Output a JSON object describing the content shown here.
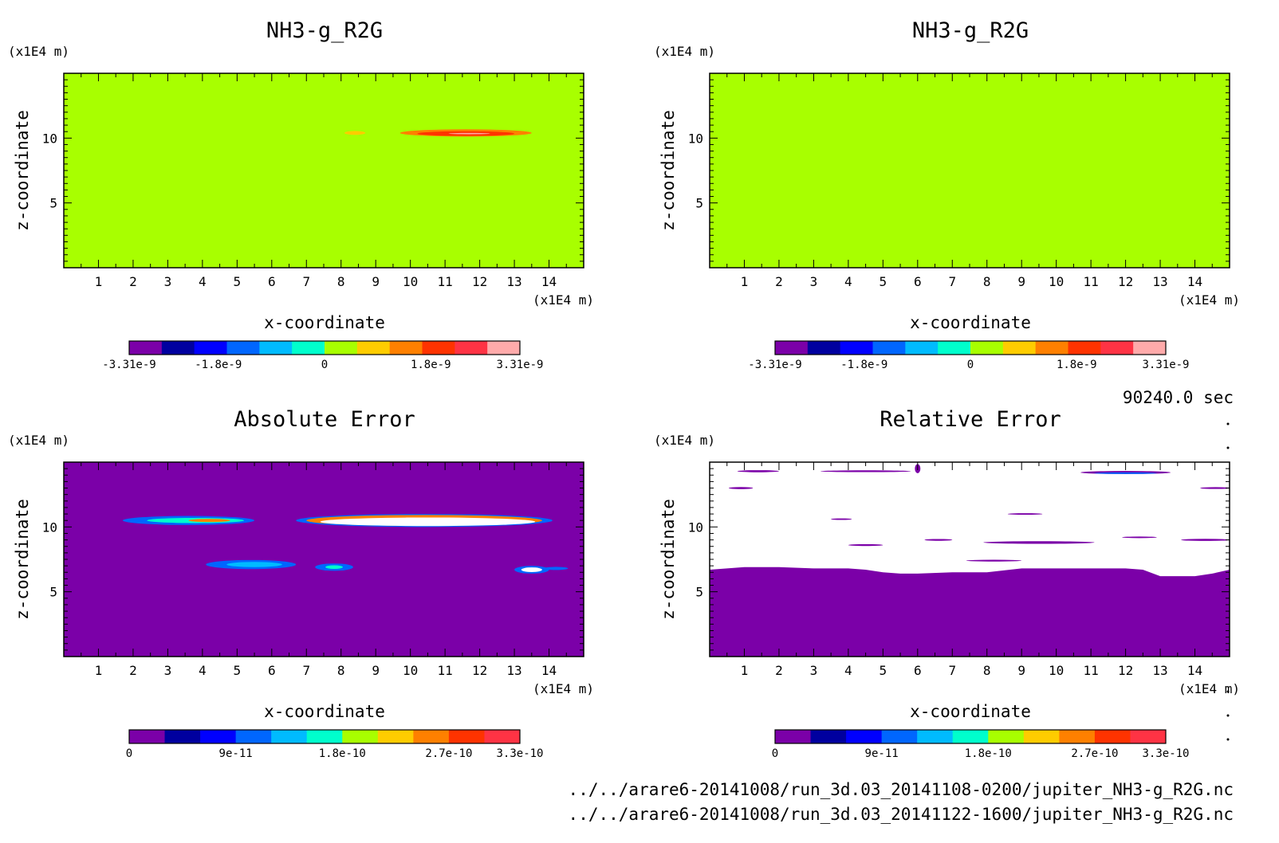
{
  "page": {
    "time_label": "90240.0 sec",
    "file_lines": [
      "../../arare6-20141008/run_3d.03_20141108-0200/jupiter_NH3-g_R2G.nc",
      "../../arare6-20141008/run_3d.03_20141122-1600/jupiter_NH3-g_R2G.nc"
    ]
  },
  "chart_data": [
    {
      "type": "heatmap",
      "title": "NH3-g_R2G",
      "xlabel": "x-coordinate",
      "ylabel": "z-coordinate",
      "x_unit": "(x1E4 m)",
      "y_unit": "(x1E4 m)",
      "xlim": [
        0,
        15
      ],
      "ylim": [
        0,
        15
      ],
      "x_ticks": [
        "1",
        "2",
        "3",
        "4",
        "5",
        "6",
        "7",
        "8",
        "9",
        "10",
        "11",
        "12",
        "13",
        "14"
      ],
      "y_ticks": [
        "5",
        "10"
      ],
      "background_color": "#a8ff00",
      "colorbar": {
        "colors": [
          "#7b00a8",
          "#00009f",
          "#0000ff",
          "#0066ff",
          "#00bbff",
          "#00ffcc",
          "#a8ff00",
          "#ffcc00",
          "#ff8000",
          "#ff3300",
          "#ff3344",
          "#ffaaaa"
        ],
        "labels": [
          "-3.31e-9",
          "-1.8e-9",
          "0",
          "1.8e-9",
          "3.31e-9"
        ],
        "min": -3.31e-09,
        "max": 3.31e-09
      },
      "features": [
        {
          "cx": 8.4,
          "cz": 10.4,
          "rx": 0.3,
          "rz": 0.15,
          "color": "#ffcc00"
        },
        {
          "cx": 11.6,
          "cz": 10.4,
          "rx": 1.9,
          "rz": 0.28,
          "color": "#ff8000"
        },
        {
          "cx": 11.6,
          "cz": 10.35,
          "rx": 1.4,
          "rz": 0.18,
          "color": "#ff3300"
        },
        {
          "cx": 11.7,
          "cz": 10.35,
          "rx": 0.6,
          "rz": 0.05,
          "color": "#ffaaaa"
        }
      ]
    },
    {
      "type": "heatmap",
      "title": "NH3-g_R2G",
      "xlabel": "x-coordinate",
      "ylabel": "z-coordinate",
      "x_unit": "(x1E4 m)",
      "y_unit": "(x1E4 m)",
      "xlim": [
        0,
        15
      ],
      "ylim": [
        0,
        15
      ],
      "x_ticks": [
        "1",
        "2",
        "3",
        "4",
        "5",
        "6",
        "7",
        "8",
        "9",
        "10",
        "11",
        "12",
        "13",
        "14"
      ],
      "y_ticks": [
        "5",
        "10"
      ],
      "background_color": "#a8ff00",
      "colorbar": {
        "colors": [
          "#7b00a8",
          "#00009f",
          "#0000ff",
          "#0066ff",
          "#00bbff",
          "#00ffcc",
          "#a8ff00",
          "#ffcc00",
          "#ff8000",
          "#ff3300",
          "#ff3344",
          "#ffaaaa"
        ],
        "labels": [
          "-3.31e-9",
          "-1.8e-9",
          "0",
          "1.8e-9",
          "3.31e-9"
        ],
        "min": -3.31e-09,
        "max": 3.31e-09
      },
      "features": []
    },
    {
      "type": "heatmap",
      "title": "Absolute Error",
      "xlabel": "x-coordinate",
      "ylabel": "z-coordinate",
      "x_unit": "(x1E4 m)",
      "y_unit": "(x1E4 m)",
      "xlim": [
        0,
        15
      ],
      "ylim": [
        0,
        15
      ],
      "x_ticks": [
        "1",
        "2",
        "3",
        "4",
        "5",
        "6",
        "7",
        "8",
        "9",
        "10",
        "11",
        "12",
        "13",
        "14"
      ],
      "y_ticks": [
        "5",
        "10"
      ],
      "background_color": "#7b00a8",
      "colorbar": {
        "colors": [
          "#7b00a8",
          "#00009f",
          "#0000ff",
          "#0066ff",
          "#00bbff",
          "#00ffcc",
          "#a8ff00",
          "#ffcc00",
          "#ff8000",
          "#ff3300",
          "#ff3344"
        ],
        "labels": [
          "0",
          "9e-11",
          "1.8e-10",
          "2.7e-10",
          "3.3e-10"
        ],
        "min": 0,
        "max": 3.3e-10
      },
      "features": [
        {
          "cx": 3.6,
          "cz": 10.5,
          "rx": 1.9,
          "rz": 0.35,
          "color": "#0066ff"
        },
        {
          "cx": 3.8,
          "cz": 10.5,
          "rx": 1.4,
          "rz": 0.2,
          "color": "#00ffcc"
        },
        {
          "cx": 4.2,
          "cz": 10.5,
          "rx": 0.6,
          "rz": 0.12,
          "color": "#ff8000"
        },
        {
          "cx": 5.4,
          "cz": 7.1,
          "rx": 1.3,
          "rz": 0.35,
          "color": "#0066ff"
        },
        {
          "cx": 5.5,
          "cz": 7.1,
          "rx": 0.8,
          "rz": 0.2,
          "color": "#00bbff"
        },
        {
          "cx": 7.8,
          "cz": 6.9,
          "rx": 0.55,
          "rz": 0.28,
          "color": "#0066ff"
        },
        {
          "cx": 7.8,
          "cz": 6.9,
          "rx": 0.25,
          "rz": 0.14,
          "color": "#00ffcc"
        },
        {
          "cx": 10.4,
          "cz": 10.5,
          "rx": 3.7,
          "rz": 0.5,
          "color": "#0066ff"
        },
        {
          "cx": 10.4,
          "cz": 10.5,
          "rx": 3.4,
          "rz": 0.42,
          "color": "#ff8000"
        },
        {
          "cx": 10.5,
          "cz": 10.4,
          "rx": 3.1,
          "rz": 0.33,
          "color": "#ffffff"
        },
        {
          "cx": 13.5,
          "cz": 6.7,
          "rx": 0.5,
          "rz": 0.3,
          "color": "#0066ff"
        },
        {
          "cx": 13.5,
          "cz": 6.7,
          "rx": 0.3,
          "rz": 0.18,
          "color": "#ffffff"
        },
        {
          "cx": 14.2,
          "cz": 6.8,
          "rx": 0.35,
          "rz": 0.12,
          "color": "#0066ff"
        }
      ]
    },
    {
      "type": "heatmap",
      "title": "Relative Error",
      "xlabel": "x-coordinate",
      "ylabel": "z-coordinate",
      "x_unit": "(x1E4 m)",
      "y_unit": "(x1E4 m)",
      "xlim": [
        0,
        15
      ],
      "ylim": [
        0,
        15
      ],
      "x_ticks": [
        "1",
        "2",
        "3",
        "4",
        "5",
        "6",
        "7",
        "8",
        "9",
        "10",
        "11",
        "12",
        "13",
        "14"
      ],
      "y_ticks": [
        "5",
        "10"
      ],
      "background_color": "#ffffff",
      "colorbar": {
        "colors": [
          "#7b00a8",
          "#00009f",
          "#0000ff",
          "#0066ff",
          "#00bbff",
          "#00ffcc",
          "#a8ff00",
          "#ffcc00",
          "#ff8000",
          "#ff3300",
          "#ff3344"
        ],
        "labels": [
          "0",
          "9e-11",
          "1.8e-10",
          "2.7e-10",
          "3.3e-10"
        ],
        "min": 0,
        "max": 3.3e-10
      },
      "fill_region": {
        "color": "#7b00a8",
        "boundary": [
          [
            0,
            6.7
          ],
          [
            0.5,
            6.8
          ],
          [
            1,
            6.9
          ],
          [
            2,
            6.9
          ],
          [
            3,
            6.8
          ],
          [
            4,
            6.8
          ],
          [
            4.5,
            6.7
          ],
          [
            5,
            6.5
          ],
          [
            5.5,
            6.4
          ],
          [
            6,
            6.4
          ],
          [
            7,
            6.5
          ],
          [
            8,
            6.5
          ],
          [
            9,
            6.8
          ],
          [
            10,
            6.8
          ],
          [
            11,
            6.8
          ],
          [
            12,
            6.8
          ],
          [
            12.5,
            6.7
          ],
          [
            13,
            6.2
          ],
          [
            14,
            6.2
          ],
          [
            14.5,
            6.4
          ],
          [
            15,
            6.7
          ]
        ]
      },
      "features": [
        {
          "cx": 1.4,
          "cz": 14.3,
          "rx": 0.6,
          "rz": 0.08,
          "color": "#7b00a8"
        },
        {
          "cx": 4.5,
          "cz": 14.3,
          "rx": 1.3,
          "rz": 0.07,
          "color": "#7b00a8"
        },
        {
          "cx": 6.0,
          "cz": 14.5,
          "rx": 0.08,
          "rz": 0.35,
          "color": "#7b00a8"
        },
        {
          "cx": 12.0,
          "cz": 14.2,
          "rx": 1.3,
          "rz": 0.12,
          "color": "#7b00a8"
        },
        {
          "cx": 12.0,
          "cz": 14.15,
          "rx": 0.9,
          "rz": 0.06,
          "color": "#0066ff"
        },
        {
          "cx": 0.9,
          "cz": 13.0,
          "rx": 0.35,
          "rz": 0.08,
          "color": "#7b00a8"
        },
        {
          "cx": 14.6,
          "cz": 13.0,
          "rx": 0.45,
          "rz": 0.07,
          "color": "#7b00a8"
        },
        {
          "cx": 3.8,
          "cz": 10.6,
          "rx": 0.3,
          "rz": 0.06,
          "color": "#7b00a8"
        },
        {
          "cx": 9.1,
          "cz": 11.0,
          "rx": 0.5,
          "rz": 0.06,
          "color": "#7b00a8"
        },
        {
          "cx": 6.6,
          "cz": 9.0,
          "rx": 0.4,
          "rz": 0.07,
          "color": "#7b00a8"
        },
        {
          "cx": 9.5,
          "cz": 8.8,
          "rx": 1.6,
          "rz": 0.1,
          "color": "#7b00a8"
        },
        {
          "cx": 12.4,
          "cz": 9.2,
          "rx": 0.5,
          "rz": 0.06,
          "color": "#7b00a8"
        },
        {
          "cx": 14.3,
          "cz": 9.0,
          "rx": 0.7,
          "rz": 0.08,
          "color": "#7b00a8"
        },
        {
          "cx": 4.5,
          "cz": 8.6,
          "rx": 0.5,
          "rz": 0.07,
          "color": "#7b00a8"
        },
        {
          "cx": 8.2,
          "cz": 7.4,
          "rx": 0.8,
          "rz": 0.07,
          "color": "#7b00a8"
        }
      ]
    }
  ]
}
